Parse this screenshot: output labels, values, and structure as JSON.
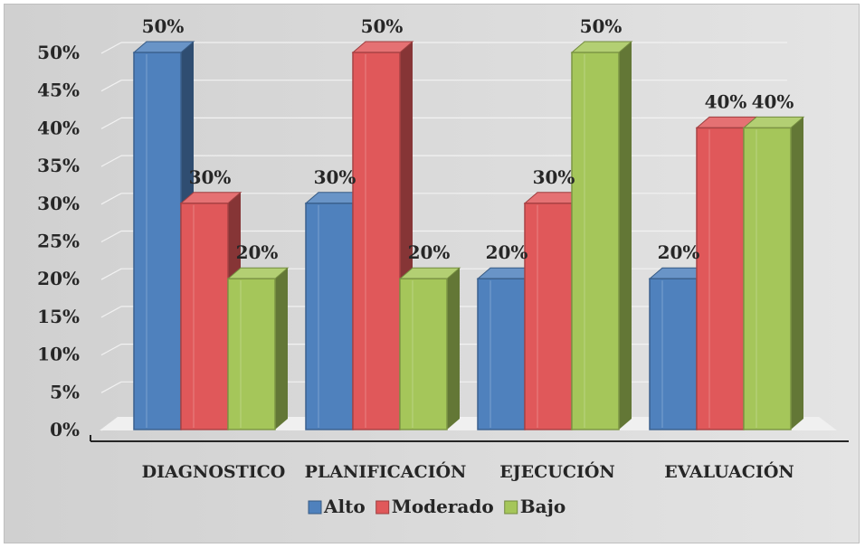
{
  "chart_data": {
    "type": "bar",
    "categories": [
      "DIAGNOSTICO",
      "PLANIFICACIÓN",
      "EJECUCIÓN",
      "EVALUACIÓN"
    ],
    "series": [
      {
        "name": "Alto",
        "values": [
          50,
          30,
          20,
          20
        ],
        "color": "#4f81bd"
      },
      {
        "name": "Moderado",
        "values": [
          30,
          50,
          30,
          40
        ],
        "color": "#e0585a"
      },
      {
        "name": "Bajo",
        "values": [
          20,
          20,
          50,
          40
        ],
        "color": "#a5c65a"
      }
    ],
    "data_labels": [
      [
        "50%",
        "30%",
        "20%",
        "20%"
      ],
      [
        "30%",
        "50%",
        "30%",
        "40%"
      ],
      [
        "20%",
        "20%",
        "50%",
        "40%"
      ]
    ],
    "y_ticks": [
      "0%",
      "5%",
      "10%",
      "15%",
      "20%",
      "25%",
      "30%",
      "35%",
      "40%",
      "45%",
      "50%"
    ],
    "ylim": [
      0,
      50
    ],
    "ytick_step": 5,
    "value_format": "percent",
    "grid": true,
    "three_d": true,
    "legend_position": "bottom",
    "background": "#d9d9d9",
    "title": "",
    "xlabel": "",
    "ylabel": ""
  }
}
